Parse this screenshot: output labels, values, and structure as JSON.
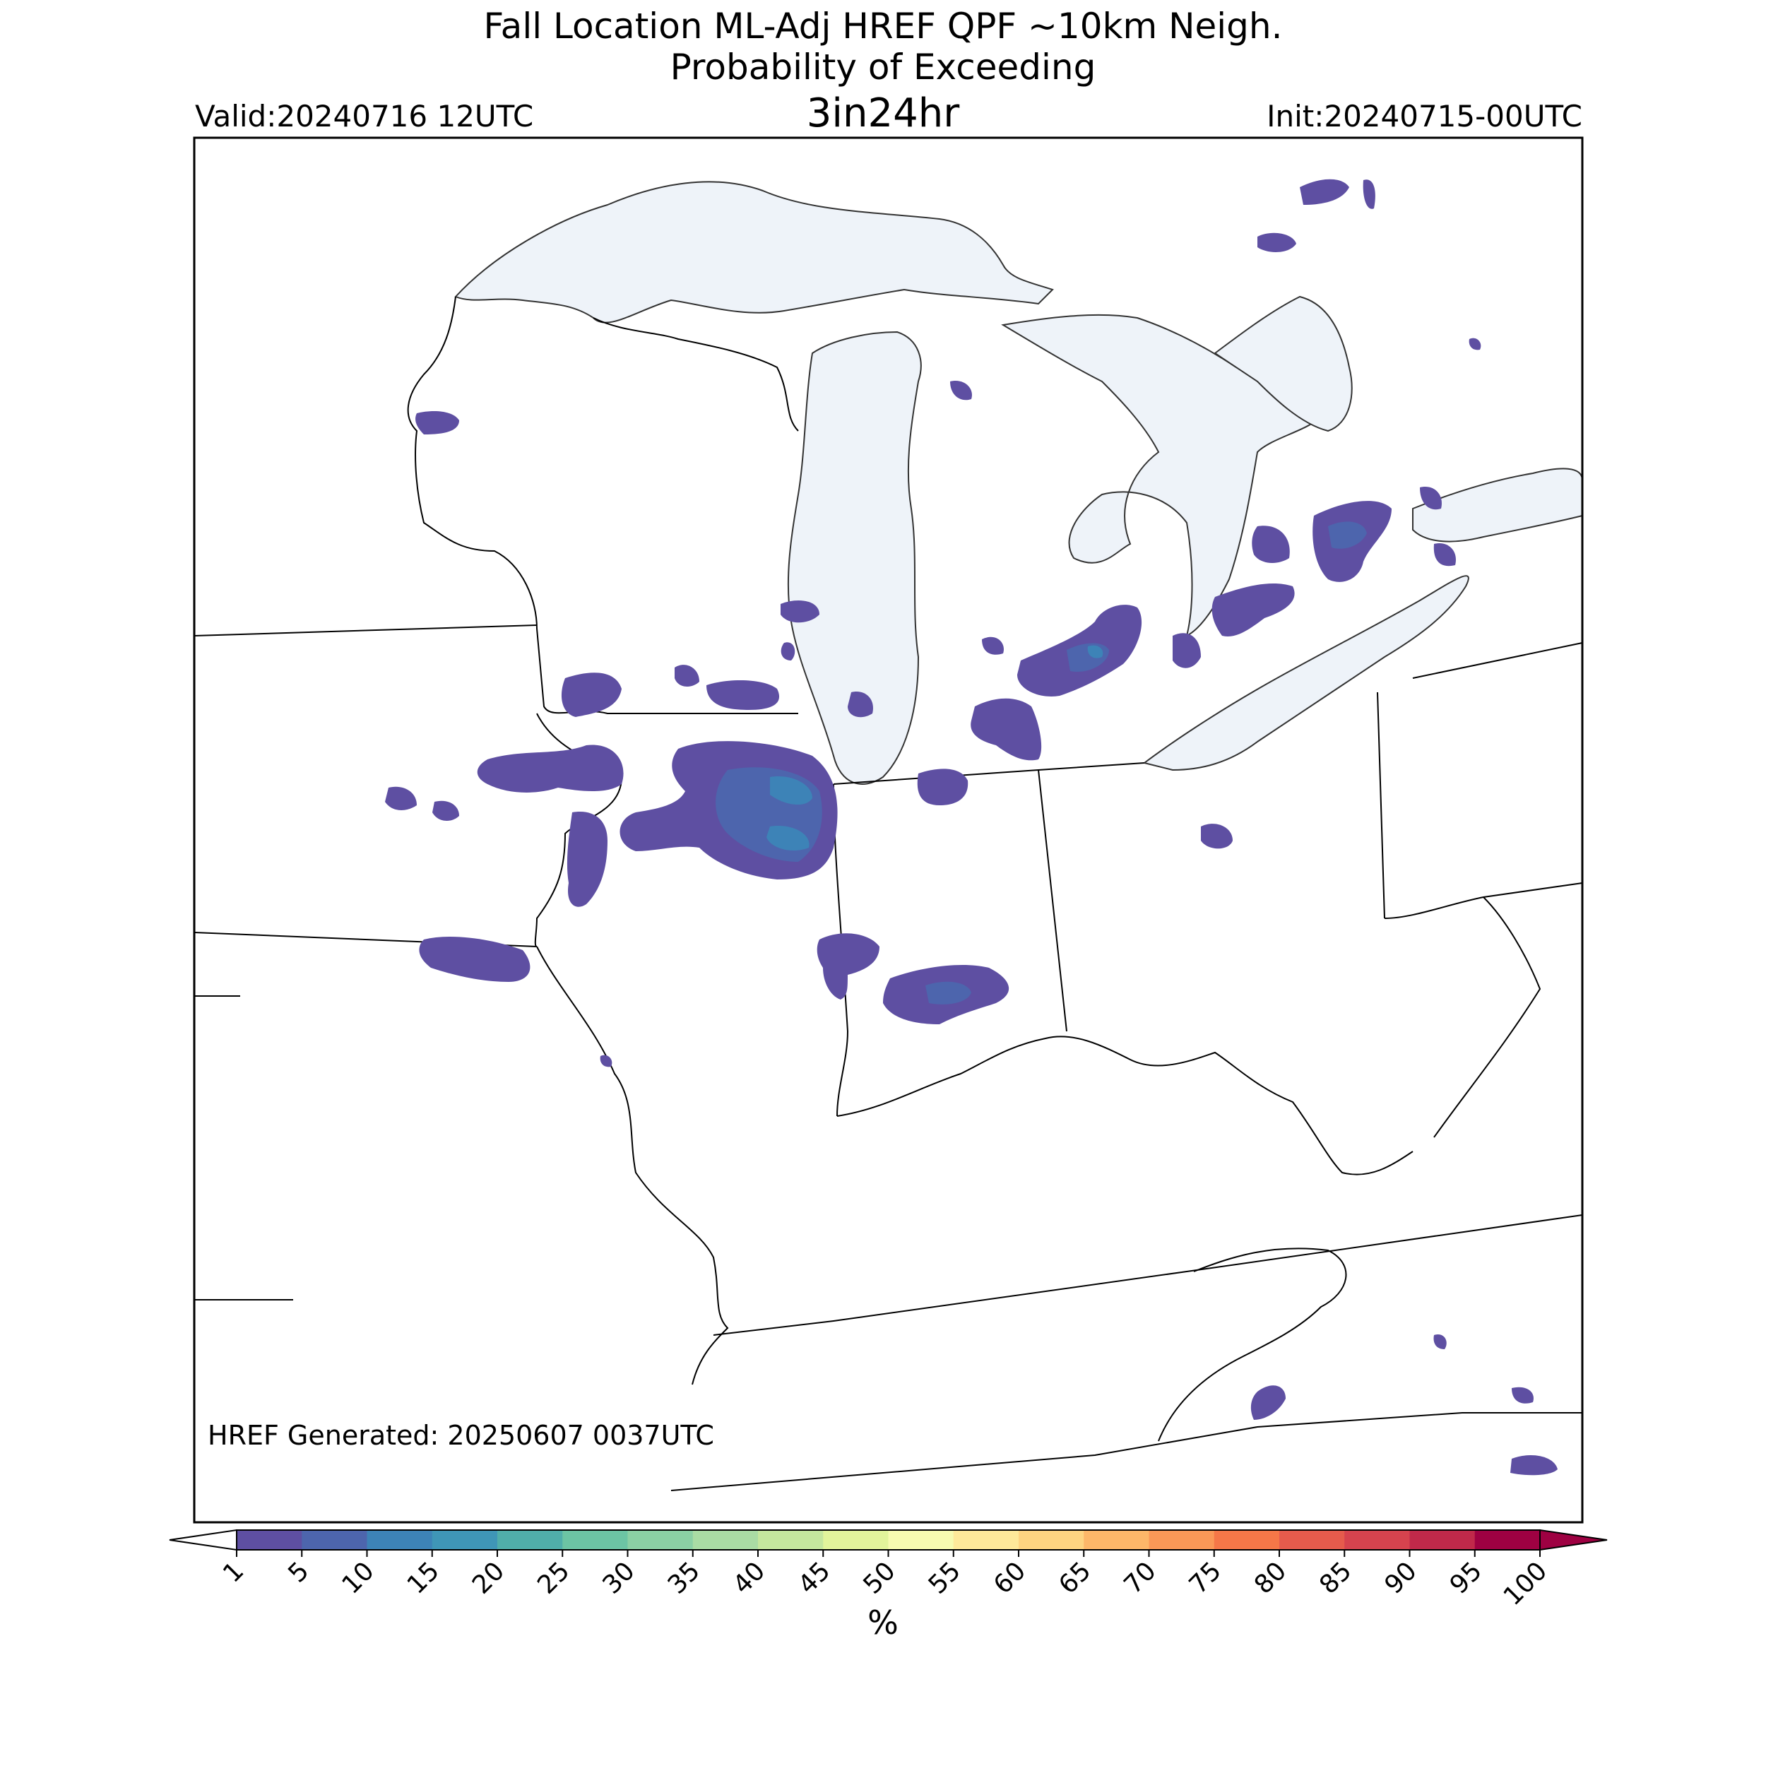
{
  "title": {
    "line1": "Fall Location ML-Adj HREF QPF ~10km Neigh.",
    "line2": "Probability of Exceeding",
    "line3": "3in24hr"
  },
  "valid_label": "Valid:20240716 12UTC",
  "init_label": "Init:20240715-00UTC",
  "footer_note": "HREF Generated: 20250607 0037UTC",
  "colorbar": {
    "unit_label": "%",
    "tick_labels": [
      "1",
      "5",
      "10",
      "15",
      "20",
      "25",
      "30",
      "35",
      "40",
      "45",
      "50",
      "55",
      "60",
      "65",
      "70",
      "75",
      "80",
      "85",
      "90",
      "95",
      "100"
    ],
    "colors": [
      "#5e4fa2",
      "#4d65ad",
      "#3d83b7",
      "#3f96b7",
      "#50aeaa",
      "#6cc4a4",
      "#8bd0a4",
      "#aadca4",
      "#c5e79e",
      "#e2f49b",
      "#f7fbb0",
      "#fee99a",
      "#fed481",
      "#fdb769",
      "#fa9857",
      "#f57748",
      "#e65b4c",
      "#d6434e",
      "#c0294a",
      "#9e0142"
    ]
  },
  "map_colors": {
    "water": "#eef3f9",
    "land": "#ffffff",
    "borders": "#000000",
    "prob_low": "#5e4fa2",
    "prob_mid": "#4d65ad",
    "prob_high": "#3d83b7"
  }
}
